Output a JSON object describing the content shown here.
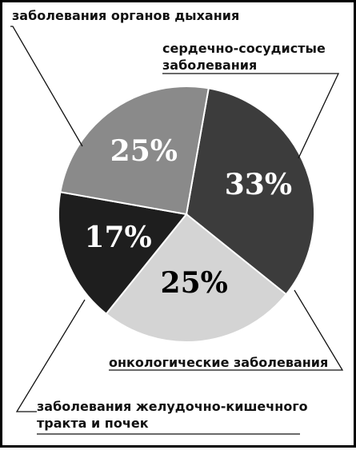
{
  "chart_data": {
    "type": "pie",
    "start_angle_deg": -80,
    "slices": [
      {
        "label": "сердечно-сосудистые заболевания",
        "value": 33,
        "value_label": "33%",
        "color": "#3c3c3c",
        "text_color": "#ffffff"
      },
      {
        "label": "онкологические заболевания",
        "value": 25,
        "value_label": "25%",
        "color": "#d4d4d4",
        "text_color": "#000000"
      },
      {
        "label": "заболевания желудочно-кишечного тракта и почек",
        "value": 17,
        "value_label": "17%",
        "color": "#1e1e1e",
        "text_color": "#ffffff"
      },
      {
        "label": "заболевания органов дыхания",
        "value": 25,
        "value_label": "25%",
        "color": "#8a8a8a",
        "text_color": "#ffffff"
      }
    ]
  },
  "callouts": {
    "respiratory": "заболевания органов дыхания",
    "cardio": [
      "сердечно-сосудистые",
      "заболевания"
    ],
    "onco": "онкологические заболевания",
    "gastro": [
      "заболевания желудочно-кишечного",
      "тракта и почек"
    ]
  }
}
